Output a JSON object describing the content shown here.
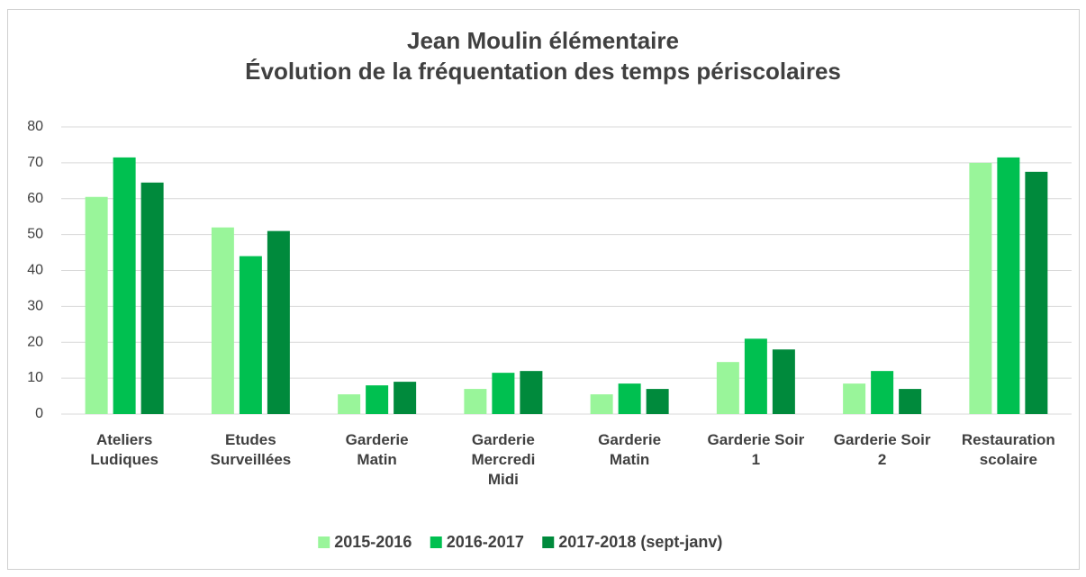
{
  "chart_data": {
    "type": "bar",
    "title": "Jean Moulin élémentaire\nÉvolution de la fréquentation des temps périscolaires",
    "categories": [
      "Ateliers\nLudiques",
      "Etudes\nSurveillées",
      "Garderie\nMatin",
      "Garderie\nMercredi\nMidi",
      "Garderie\nMatin",
      "Garderie Soir\n1",
      "Garderie Soir\n2",
      "Restauration\nscolaire"
    ],
    "series": [
      {
        "name": "2015-2016",
        "color": "#99f59a",
        "values": [
          60.5,
          52,
          5.5,
          7,
          5.5,
          14.5,
          8.5,
          70
        ]
      },
      {
        "name": "2016-2017",
        "color": "#00c050",
        "values": [
          71.5,
          44,
          8,
          11.5,
          8.5,
          21,
          12,
          71.5
        ]
      },
      {
        "name": "2017-2018 (sept-janv)",
        "color": "#008a3c",
        "values": [
          64.5,
          51,
          9,
          12,
          7,
          18,
          7,
          67.5
        ]
      }
    ],
    "ylim": [
      0,
      80
    ],
    "yticks": [
      0,
      10,
      20,
      30,
      40,
      50,
      60,
      70,
      80
    ],
    "grid": true,
    "legend": "bottom"
  }
}
